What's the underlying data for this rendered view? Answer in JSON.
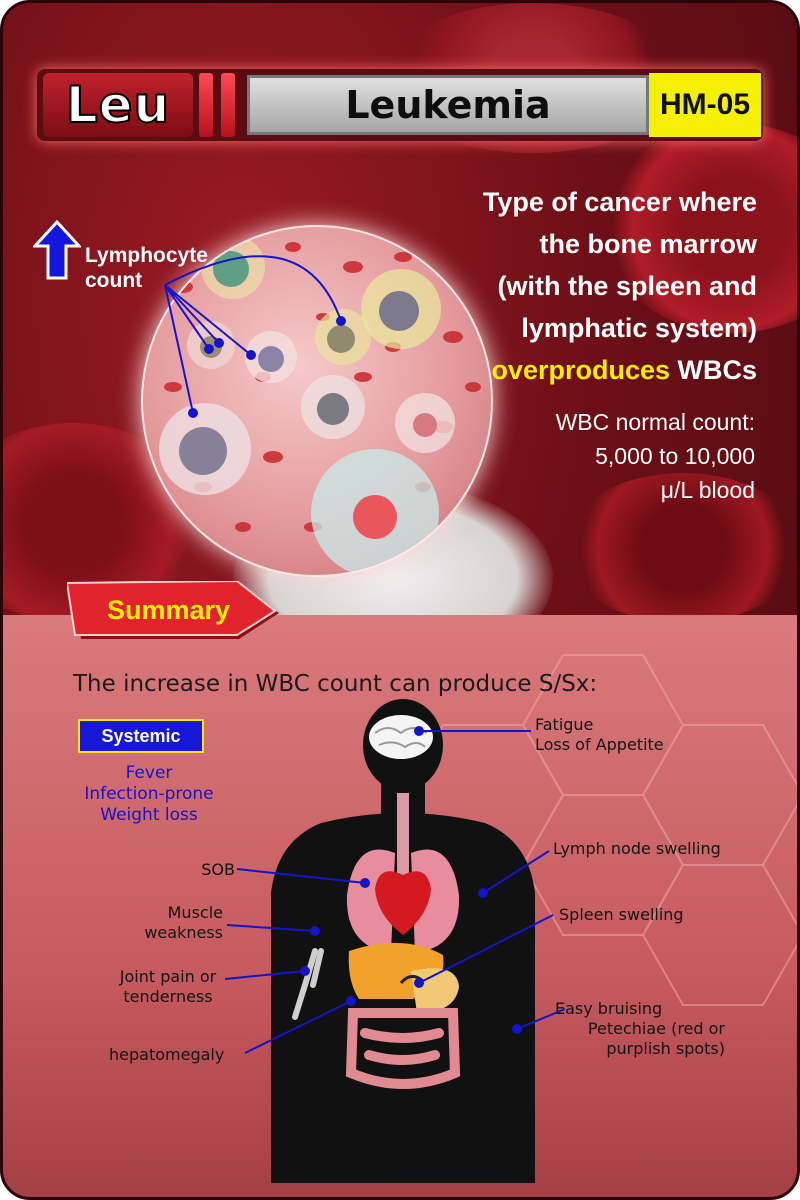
{
  "header": {
    "abbreviation": "Leu",
    "title": "Leukemia",
    "code": "HM-05"
  },
  "lymphocyte": {
    "label_line1": "Lymphocyte",
    "label_line2": "count",
    "indicator_icon": "up-arrow-icon"
  },
  "description": {
    "line1": "Type of cancer where",
    "line2": "the bone marrow",
    "line3": "(with the spleen and",
    "line4": "lymphatic system)",
    "highlight": "overproduces",
    "line5_rest": " WBCs"
  },
  "normal_count": {
    "line1": "WBC normal count:",
    "line2": "5,000 to 10,000",
    "line3": "μ/L blood"
  },
  "summary": {
    "tab_label": "Summary",
    "intro": "The increase in WBC count can produce S/Sx:",
    "systemic_label": "Systemic",
    "systemic_items": [
      "Fever",
      "Infection-prone",
      "Weight loss"
    ]
  },
  "body_labels": {
    "fatigue": "Fatigue",
    "appetite": "Loss of Appetite",
    "lymph_node": "Lymph node swelling",
    "spleen": "Spleen swelling",
    "bruising": "Easy bruising",
    "petechiae1": "Petechiae (red or",
    "petechiae2": "purplish spots)",
    "sob": "SOB",
    "muscle1": "Muscle",
    "muscle2": "weakness",
    "joint1": "Joint pain or",
    "joint2": "tenderness",
    "hepatomegaly": "hepatomegaly"
  },
  "colors": {
    "accent_yellow": "#ffee00",
    "header_red": "#c0222c",
    "systemic_blue": "#1717d8",
    "line_blue": "#1414c8"
  }
}
